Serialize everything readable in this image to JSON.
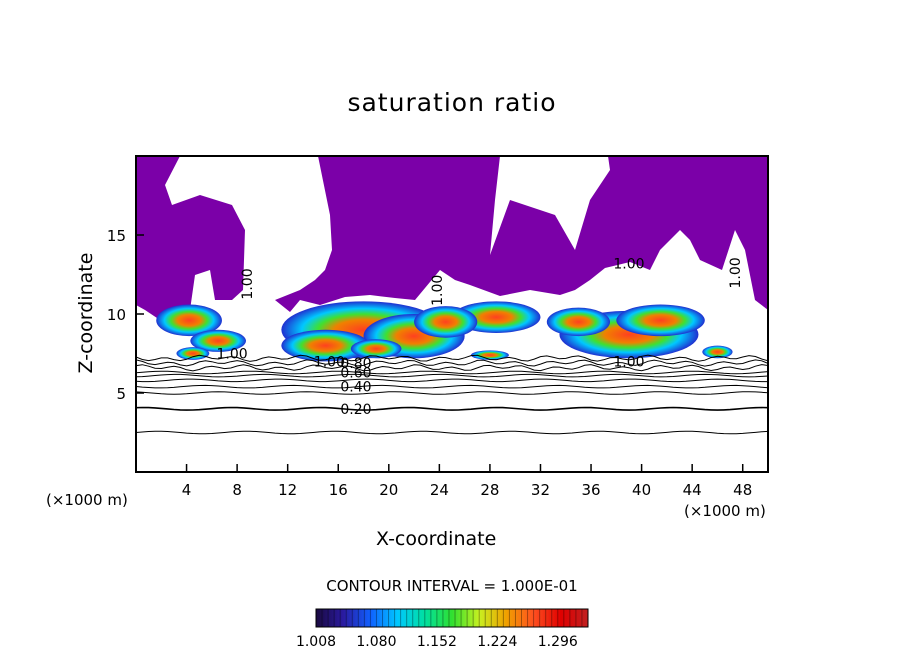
{
  "chart_data": {
    "type": "heatmap",
    "title": "saturation ratio",
    "xlabel": "X-coordinate",
    "ylabel": "Z-coordinate",
    "x_unit": "(×1000 m)",
    "z_unit": "(×1000 m)",
    "xlim": [
      0,
      50
    ],
    "ylim": [
      0,
      20
    ],
    "x_ticks": [
      4,
      8,
      12,
      16,
      20,
      24,
      28,
      32,
      36,
      40,
      44,
      48
    ],
    "y_ticks": [
      5,
      10,
      15
    ],
    "contour_labels": [
      {
        "text": "0.20",
        "x": 17.4,
        "z": 4.0
      },
      {
        "text": "0.40",
        "x": 17.4,
        "z": 5.4
      },
      {
        "text": "0.60",
        "x": 17.4,
        "z": 6.3
      },
      {
        "text": "0.80",
        "x": 17.4,
        "z": 6.9
      },
      {
        "text": "1.00",
        "x": 15.3,
        "z": 7.0
      },
      {
        "text": "1.00",
        "x": 39.0,
        "z": 7.0
      },
      {
        "text": "1.00",
        "x": 39.0,
        "z": 13.2
      },
      {
        "text": "1.00",
        "x": 8.8,
        "z": 11.9
      },
      {
        "text": "1.00",
        "x": 23.8,
        "z": 11.5
      },
      {
        "text": "1.00",
        "x": 47.4,
        "z": 12.6
      },
      {
        "text": "1.00",
        "x": 7.6,
        "z": 7.5
      }
    ],
    "contour_interval_text": "CONTOUR INTERVAL = 1.000E-01",
    "colorbar": {
      "range": [
        1.008,
        1.332
      ],
      "tick_labels": [
        "1.008",
        "1.080",
        "1.152",
        "1.224",
        "1.296"
      ],
      "colors": [
        "#1a0a40",
        "#2a1aa0",
        "#1060ff",
        "#00c8ff",
        "#00e0a0",
        "#30e030",
        "#c8f020",
        "#f0a000",
        "#ff5020",
        "#e00000",
        "#c02020"
      ]
    },
    "subsaturated_fill_color": "#7b00a8",
    "grid": false
  }
}
